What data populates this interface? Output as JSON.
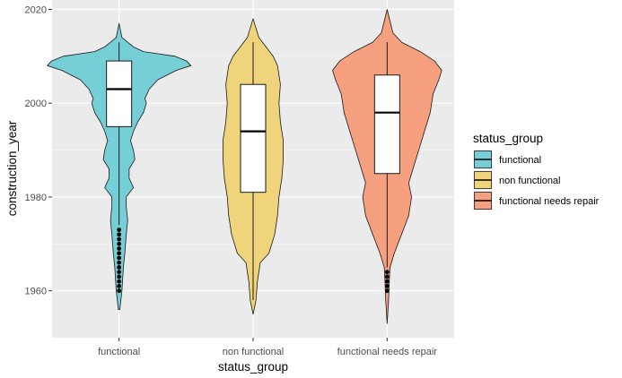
{
  "chart_data": {
    "type": "violin",
    "xlabel": "status_group",
    "ylabel": "construction_year",
    "ylim": [
      1950,
      2022
    ],
    "y_ticks": [
      1960,
      1980,
      2000,
      2020
    ],
    "grid": true,
    "legend_title": "status_group",
    "legend_position": "right",
    "categories": [
      "functional",
      "non functional",
      "functional needs repair"
    ],
    "series": [
      {
        "name": "functional",
        "color": "#76CED7",
        "range": [
          1956,
          2017
        ],
        "density": [
          [
            1956,
            0.01
          ],
          [
            1960,
            0.04
          ],
          [
            1965,
            0.06
          ],
          [
            1968,
            0.08
          ],
          [
            1972,
            0.1
          ],
          [
            1975,
            0.12
          ],
          [
            1978,
            0.1
          ],
          [
            1980,
            0.1
          ],
          [
            1982,
            0.2
          ],
          [
            1984,
            0.14
          ],
          [
            1986,
            0.14
          ],
          [
            1988,
            0.22
          ],
          [
            1990,
            0.2
          ],
          [
            1992,
            0.16
          ],
          [
            1994,
            0.2
          ],
          [
            1996,
            0.26
          ],
          [
            1998,
            0.34
          ],
          [
            2000,
            0.38
          ],
          [
            2001,
            0.36
          ],
          [
            2003,
            0.42
          ],
          [
            2005,
            0.54
          ],
          [
            2007,
            0.8
          ],
          [
            2008,
            1.0
          ],
          [
            2009,
            0.94
          ],
          [
            2010,
            0.78
          ],
          [
            2011,
            0.34
          ],
          [
            2012,
            0.2
          ],
          [
            2013,
            0.12
          ],
          [
            2014,
            0.04
          ],
          [
            2017,
            0.0
          ]
        ],
        "box": {
          "q1": 1995,
          "median": 2003,
          "q3": 2009,
          "whisker_low": 1974,
          "whisker_high": 2013
        },
        "outliers": [
          1960,
          1961,
          1962,
          1963,
          1964,
          1965,
          1966,
          1967,
          1968,
          1969,
          1970,
          1971,
          1972,
          1973
        ]
      },
      {
        "name": "non functional",
        "color": "#EFD47B",
        "range": [
          1955,
          2018
        ],
        "density": [
          [
            1955,
            0.0
          ],
          [
            1958,
            0.04
          ],
          [
            1962,
            0.06
          ],
          [
            1966,
            0.1
          ],
          [
            1968,
            0.22
          ],
          [
            1972,
            0.3
          ],
          [
            1976,
            0.34
          ],
          [
            1980,
            0.36
          ],
          [
            1984,
            0.4
          ],
          [
            1988,
            0.42
          ],
          [
            1992,
            0.42
          ],
          [
            1996,
            0.38
          ],
          [
            2000,
            0.36
          ],
          [
            2004,
            0.38
          ],
          [
            2006,
            0.36
          ],
          [
            2008,
            0.34
          ],
          [
            2010,
            0.28
          ],
          [
            2012,
            0.18
          ],
          [
            2014,
            0.08
          ],
          [
            2018,
            0.0
          ]
        ],
        "box": {
          "q1": 1981,
          "median": 1994,
          "q3": 2004,
          "whisker_low": 1958,
          "whisker_high": 2013
        },
        "outliers": []
      },
      {
        "name": "functional needs repair",
        "color": "#F6A080",
        "range": [
          1953,
          2020
        ],
        "density": [
          [
            1953,
            0.0
          ],
          [
            1958,
            0.02
          ],
          [
            1962,
            0.03
          ],
          [
            1965,
            0.04
          ],
          [
            1968,
            0.1
          ],
          [
            1972,
            0.2
          ],
          [
            1976,
            0.3
          ],
          [
            1980,
            0.34
          ],
          [
            1983,
            0.3
          ],
          [
            1986,
            0.36
          ],
          [
            1990,
            0.44
          ],
          [
            1994,
            0.52
          ],
          [
            1998,
            0.6
          ],
          [
            2002,
            0.64
          ],
          [
            2005,
            0.72
          ],
          [
            2007,
            0.76
          ],
          [
            2009,
            0.66
          ],
          [
            2011,
            0.46
          ],
          [
            2013,
            0.2
          ],
          [
            2015,
            0.08
          ],
          [
            2020,
            0.0
          ]
        ],
        "box": {
          "q1": 1985,
          "median": 1998,
          "q3": 2006,
          "whisker_low": 1965,
          "whisker_high": 2013
        },
        "outliers": [
          1960,
          1961,
          1962,
          1963,
          1964
        ]
      }
    ]
  }
}
